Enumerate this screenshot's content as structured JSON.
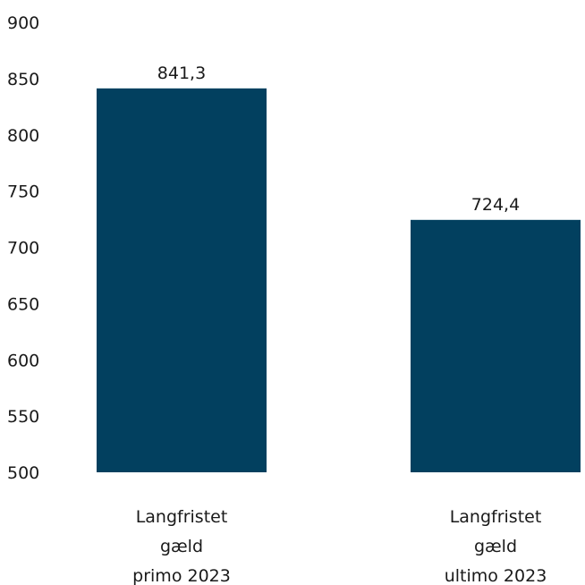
{
  "chart_data": {
    "type": "bar",
    "categories": [
      [
        "Langfristet",
        "gæld",
        "primo 2023"
      ],
      [
        "Langfristet",
        "gæld",
        "ultimo 2023"
      ]
    ],
    "values": [
      841.3,
      724.4
    ],
    "data_labels": [
      "841,3",
      "724,4"
    ],
    "ylim": [
      500,
      900
    ],
    "yticks": [
      500,
      550,
      600,
      650,
      700,
      750,
      800,
      850,
      900
    ],
    "grid": false,
    "bar_color": "#02405f",
    "title": "",
    "xlabel": "",
    "ylabel": ""
  }
}
